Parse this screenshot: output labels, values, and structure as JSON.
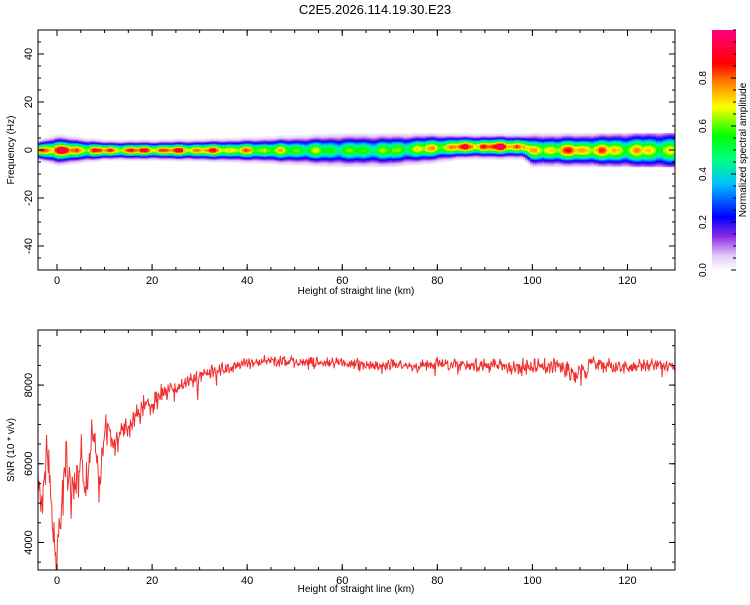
{
  "figure": {
    "title": "C2E5.2026.114.19.30.E23"
  },
  "chart_data": [
    {
      "type": "heatmap",
      "xlabel": "Height of straight line (km)",
      "ylabel": "Frequency (Hz)",
      "xlim": [
        -4,
        130
      ],
      "ylim": [
        -50,
        50
      ],
      "x_ticks": [
        0,
        20,
        40,
        60,
        80,
        100,
        120
      ],
      "y_ticks": [
        -40,
        -20,
        0,
        20,
        40
      ],
      "colorbar": {
        "label": "Normalized spectral amplitude",
        "range": [
          0,
          1
        ],
        "ticks": [
          "0.0",
          "0.2",
          "0.4",
          "0.6",
          "0.8"
        ],
        "tick_values": [
          0,
          0.2,
          0.4,
          0.6,
          0.8
        ]
      },
      "band": {
        "description_points_x": [
          -4,
          0,
          5,
          10,
          20,
          30,
          40,
          50,
          60,
          70,
          80,
          85,
          90,
          95,
          98,
          100,
          105,
          110,
          120,
          130
        ],
        "center_hz": [
          0,
          0,
          0,
          0,
          0,
          0,
          0,
          0,
          0,
          0,
          1,
          1.5,
          1.5,
          1.5,
          1.5,
          0,
          0,
          0,
          0,
          0
        ],
        "halfwidth_hz": [
          2,
          3,
          2.5,
          2,
          2,
          2.2,
          2.5,
          3,
          3.5,
          3.5,
          3,
          2.5,
          2.5,
          2.5,
          2.5,
          3.5,
          3.5,
          3.5,
          4,
          4.5
        ],
        "peak_amplitude": [
          0.9,
          0.95,
          0.85,
          0.85,
          0.9,
          0.85,
          0.75,
          0.65,
          0.6,
          0.62,
          0.75,
          0.85,
          0.92,
          0.92,
          0.9,
          0.7,
          0.8,
          0.85,
          0.75,
          0.7
        ]
      }
    },
    {
      "type": "line",
      "xlabel": "Height of straight line (km)",
      "ylabel": "SNR (10 * v/v)",
      "xlim": [
        -4,
        130
      ],
      "ylim": [
        3300,
        9400
      ],
      "x_ticks": [
        0,
        20,
        40,
        60,
        80,
        100,
        120
      ],
      "y_ticks": [
        4000,
        6000,
        8000
      ],
      "series": [
        {
          "color": "#f03030",
          "x": [
            -4,
            -3,
            -2,
            -1,
            0,
            1,
            2,
            3,
            4,
            5,
            6,
            7,
            8,
            9,
            10,
            12,
            14,
            16,
            18,
            20,
            22,
            25,
            28,
            30,
            35,
            40,
            45,
            50,
            55,
            60,
            65,
            70,
            75,
            80,
            85,
            90,
            95,
            100,
            105,
            108,
            110,
            112,
            115,
            120,
            125,
            130
          ],
          "mean": [
            5600,
            4800,
            6600,
            4400,
            3700,
            5000,
            6100,
            5300,
            5600,
            6200,
            5200,
            6300,
            6500,
            5400,
            7000,
            6500,
            6900,
            7100,
            7400,
            7500,
            7800,
            7900,
            8100,
            8200,
            8400,
            8550,
            8600,
            8600,
            8550,
            8550,
            8500,
            8500,
            8480,
            8550,
            8500,
            8520,
            8480,
            8450,
            8500,
            8300,
            8250,
            8550,
            8500,
            8450,
            8500,
            8450
          ],
          "noise": [
            900,
            900,
            900,
            900,
            900,
            900,
            900,
            800,
            800,
            800,
            800,
            700,
            700,
            700,
            600,
            600,
            500,
            500,
            450,
            400,
            400,
            350,
            300,
            300,
            250,
            220,
            220,
            220,
            220,
            220,
            220,
            220,
            220,
            250,
            250,
            250,
            250,
            320,
            300,
            400,
            420,
            300,
            250,
            250,
            250,
            250
          ]
        }
      ]
    }
  ]
}
